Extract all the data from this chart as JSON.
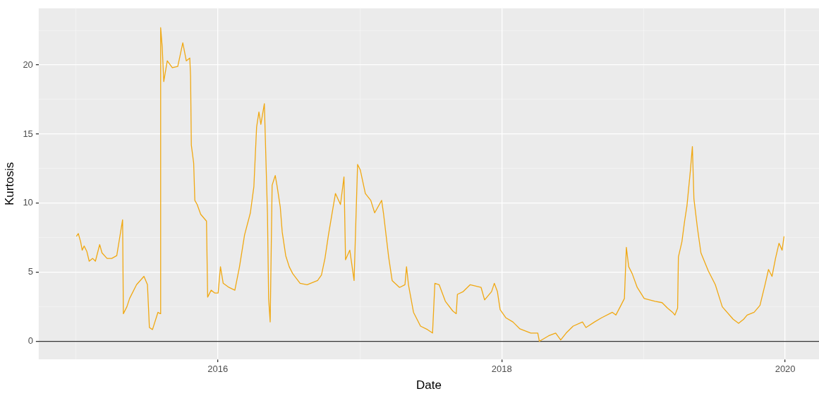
{
  "chart_data": {
    "type": "line",
    "xlabel": "Date",
    "ylabel": "Kurtosis",
    "x": [
      "2015-01-02",
      "2015-01-07",
      "2015-01-13",
      "2015-01-17",
      "2015-01-22",
      "2015-01-29",
      "2015-02-04",
      "2015-02-13",
      "2015-02-20",
      "2015-03-03",
      "2015-03-09",
      "2015-03-22",
      "2015-04-03",
      "2015-04-16",
      "2015-05-01",
      "2015-05-03",
      "2015-05-12",
      "2015-05-19",
      "2015-06-06",
      "2015-06-25",
      "2015-07-04",
      "2015-07-09",
      "2015-07-17",
      "2015-07-31",
      "2015-08-06",
      "2015-08-07",
      "2015-08-11",
      "2015-08-15",
      "2015-08-24",
      "2015-09-06",
      "2015-09-20",
      "2015-10-03",
      "2015-10-12",
      "2015-10-21",
      "2015-10-23",
      "2015-10-25",
      "2015-10-31",
      "2015-11-03",
      "2015-11-09",
      "2015-11-18",
      "2015-12-03",
      "2015-12-06",
      "2015-12-15",
      "2015-12-24",
      "2016-01-02",
      "2016-01-08",
      "2016-01-15",
      "2016-01-30",
      "2016-02-14",
      "2016-02-26",
      "2016-03-10",
      "2016-03-25",
      "2016-04-03",
      "2016-04-10",
      "2016-04-16",
      "2016-04-21",
      "2016-04-30",
      "2016-05-08",
      "2016-05-11",
      "2016-05-15",
      "2016-05-20",
      "2016-05-28",
      "2016-06-02",
      "2016-06-10",
      "2016-06-15",
      "2016-06-24",
      "2016-07-03",
      "2016-07-12",
      "2016-07-31",
      "2016-08-18",
      "2016-09-14",
      "2016-09-24",
      "2016-10-03",
      "2016-10-12",
      "2016-10-21",
      "2016-10-30",
      "2016-11-12",
      "2016-11-21",
      "2016-11-25",
      "2016-12-06",
      "2016-12-17",
      "2016-12-26",
      "2017-01-02",
      "2017-01-15",
      "2017-01-29",
      "2017-02-08",
      "2017-02-26",
      "2017-03-03",
      "2017-03-16",
      "2017-03-25",
      "2017-04-13",
      "2017-04-27",
      "2017-05-01",
      "2017-05-06",
      "2017-05-19",
      "2017-06-06",
      "2017-06-24",
      "2017-07-07",
      "2017-07-13",
      "2017-07-24",
      "2017-08-09",
      "2017-08-28",
      "2017-09-06",
      "2017-09-09",
      "2017-09-24",
      "2017-10-12",
      "2017-11-09",
      "2017-11-18",
      "2017-12-06",
      "2017-12-13",
      "2017-12-21",
      "2017-12-28",
      "2018-01-12",
      "2018-01-30",
      "2018-02-17",
      "2018-03-17",
      "2018-04-04",
      "2018-04-08",
      "2018-05-02",
      "2018-05-20",
      "2018-06-02",
      "2018-06-16",
      "2018-07-04",
      "2018-07-28",
      "2018-08-06",
      "2018-08-28",
      "2018-09-15",
      "2018-10-13",
      "2018-10-22",
      "2018-11-04",
      "2018-11-13",
      "2018-11-18",
      "2018-11-24",
      "2018-12-03",
      "2018-12-16",
      "2019-01-03",
      "2019-01-31",
      "2019-02-18",
      "2019-03-04",
      "2019-03-17",
      "2019-03-23",
      "2019-03-30",
      "2019-04-01",
      "2019-04-10",
      "2019-04-17",
      "2019-04-23",
      "2019-05-02",
      "2019-05-07",
      "2019-05-11",
      "2019-05-20",
      "2019-05-29",
      "2019-06-17",
      "2019-07-05",
      "2019-07-23",
      "2019-08-20",
      "2019-09-03",
      "2019-09-16",
      "2019-09-25",
      "2019-10-13",
      "2019-10-28",
      "2019-11-10",
      "2019-11-19",
      "2019-11-28",
      "2019-12-07",
      "2019-12-16",
      "2019-12-24",
      "2019-12-29"
    ],
    "series": [
      {
        "color": "#f0a812",
        "values": [
          7.6,
          7.8,
          7.2,
          6.6,
          6.9,
          6.5,
          5.8,
          6.0,
          5.8,
          7.0,
          6.4,
          6.0,
          6.0,
          6.2,
          8.8,
          2.0,
          2.5,
          3.1,
          4.1,
          4.7,
          4.1,
          1.0,
          0.85,
          2.1,
          2.0,
          22.7,
          21.3,
          18.8,
          20.3,
          19.8,
          19.9,
          21.6,
          20.3,
          20.5,
          19.2,
          14.2,
          12.9,
          10.2,
          9.9,
          9.2,
          8.7,
          3.2,
          3.7,
          3.5,
          3.5,
          5.4,
          4.2,
          3.9,
          3.7,
          5.4,
          7.7,
          9.3,
          11.2,
          15.5,
          16.6,
          15.7,
          17.2,
          9.2,
          3.1,
          1.4,
          11.3,
          12.0,
          11.2,
          9.7,
          7.9,
          6.2,
          5.4,
          4.9,
          4.2,
          4.1,
          4.4,
          4.8,
          6.0,
          7.7,
          9.2,
          10.7,
          9.9,
          11.9,
          5.9,
          6.6,
          4.4,
          12.8,
          12.4,
          10.7,
          10.2,
          9.3,
          10.2,
          9.2,
          6.1,
          4.4,
          3.9,
          4.1,
          5.4,
          4.1,
          2.1,
          1.1,
          0.85,
          0.6,
          4.2,
          4.1,
          2.9,
          2.2,
          2.0,
          3.4,
          3.6,
          4.1,
          3.9,
          3.0,
          3.6,
          4.2,
          3.6,
          2.3,
          1.7,
          1.4,
          0.9,
          0.6,
          0.6,
          0.0,
          0.4,
          0.6,
          0.1,
          0.6,
          1.1,
          1.4,
          1.0,
          1.4,
          1.7,
          2.1,
          1.9,
          2.6,
          3.1,
          6.8,
          5.4,
          4.9,
          3.9,
          3.1,
          2.9,
          2.8,
          2.4,
          2.1,
          1.9,
          2.4,
          6.1,
          7.2,
          8.7,
          9.8,
          12.4,
          14.1,
          10.3,
          8.2,
          6.4,
          5.1,
          4.1,
          2.5,
          1.6,
          1.3,
          1.6,
          1.9,
          2.1,
          2.6,
          4.1,
          5.2,
          4.7,
          6.0,
          7.1,
          6.6,
          7.6
        ]
      }
    ],
    "xlim": [
      "2014-09-27",
      "2020-03-28"
    ],
    "xticks": [
      {
        "value": "2015",
        "label": null
      },
      "2016",
      {
        "value": "2017",
        "label": null
      },
      "2018",
      {
        "value": "2019",
        "label": null
      },
      "2020"
    ],
    "ylim": [
      -1.3,
      24.1
    ],
    "yticks": [
      {
        "value": -1.3,
        "label": null
      },
      0,
      {
        "value": 2.5,
        "label": null
      },
      5,
      {
        "value": 7.5,
        "label": null
      },
      10,
      {
        "value": 12.5,
        "label": null
      },
      15,
      {
        "value": 17.5,
        "label": null
      },
      20,
      {
        "value": 22.5,
        "label": null
      }
    ],
    "ref_lines": [
      {
        "axis": "y",
        "value": 0,
        "color": "#333333"
      }
    ],
    "grid": true,
    "legend": false
  }
}
